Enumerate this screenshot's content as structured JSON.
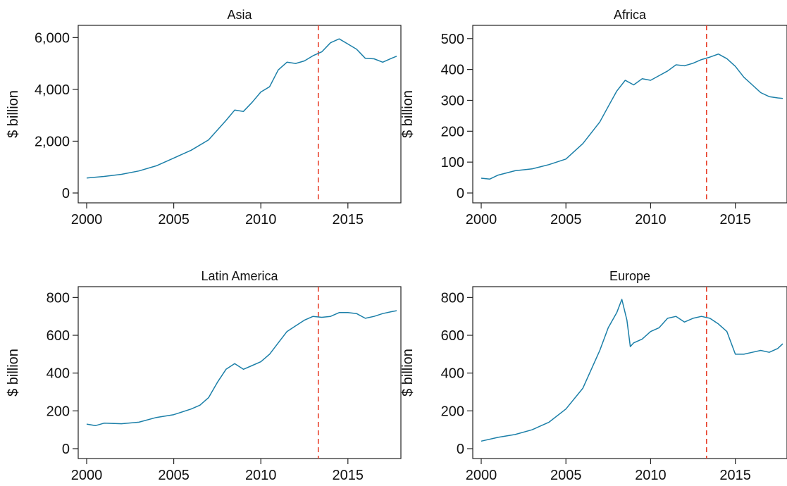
{
  "chart_data": [
    {
      "type": "line",
      "title": "Asia",
      "ylabel": "$ billion",
      "xlim": [
        2000,
        2017.8
      ],
      "ylim": [
        0,
        6200
      ],
      "xticks": [
        2000,
        2005,
        2010,
        2015
      ],
      "xtick_labels": [
        "2000",
        "2005",
        "2010",
        "2015"
      ],
      "yticks": [
        0,
        2000,
        4000,
        6000
      ],
      "ytick_labels": [
        "0",
        "2,000",
        "4,000",
        "6,000"
      ],
      "reference_line_x": 2013.3,
      "x": [
        2000,
        2001,
        2002,
        2003,
        2004,
        2005,
        2006,
        2007,
        2008,
        2008.5,
        2009,
        2009.5,
        2010,
        2010.5,
        2011,
        2011.5,
        2012,
        2012.5,
        2013,
        2013.5,
        2014,
        2014.5,
        2015,
        2015.5,
        2016,
        2016.5,
        2017,
        2017.5,
        2017.8
      ],
      "series": [
        {
          "values": [
            580,
            640,
            720,
            850,
            1050,
            1350,
            1650,
            2050,
            2800,
            3200,
            3150,
            3500,
            3900,
            4100,
            4750,
            5050,
            5000,
            5100,
            5300,
            5450,
            5800,
            5950,
            5750,
            5550,
            5200,
            5180,
            5050,
            5200,
            5280
          ]
        }
      ]
    },
    {
      "type": "line",
      "title": "Africa",
      "ylabel": "$ billion",
      "xlim": [
        2000,
        2017.8
      ],
      "ylim": [
        0,
        520
      ],
      "xticks": [
        2000,
        2005,
        2010,
        2015
      ],
      "xtick_labels": [
        "2000",
        "2005",
        "2010",
        "2015"
      ],
      "yticks": [
        0,
        100,
        200,
        300,
        400,
        500
      ],
      "ytick_labels": [
        "0",
        "100",
        "200",
        "300",
        "400",
        "500"
      ],
      "reference_line_x": 2013.3,
      "x": [
        2000,
        2000.5,
        2001,
        2002,
        2003,
        2004,
        2005,
        2006,
        2007,
        2007.5,
        2008,
        2008.5,
        2009,
        2009.5,
        2010,
        2010.5,
        2011,
        2011.5,
        2012,
        2012.5,
        2013,
        2013.5,
        2014,
        2014.5,
        2015,
        2015.5,
        2016,
        2016.5,
        2017,
        2017.5,
        2017.8
      ],
      "series": [
        {
          "values": [
            48,
            45,
            58,
            72,
            78,
            92,
            110,
            160,
            230,
            280,
            330,
            365,
            350,
            370,
            365,
            380,
            395,
            415,
            412,
            420,
            432,
            440,
            450,
            435,
            410,
            375,
            350,
            325,
            312,
            308,
            306
          ]
        }
      ]
    },
    {
      "type": "line",
      "title": "Latin America",
      "ylabel": "$ billion",
      "xlim": [
        2000,
        2017.8
      ],
      "ylim": [
        0,
        820
      ],
      "xticks": [
        2000,
        2005,
        2010,
        2015
      ],
      "xtick_labels": [
        "2000",
        "2005",
        "2010",
        "2015"
      ],
      "yticks": [
        0,
        200,
        400,
        600,
        800
      ],
      "ytick_labels": [
        "0",
        "200",
        "400",
        "600",
        "800"
      ],
      "reference_line_x": 2013.3,
      "x": [
        2000,
        2000.5,
        2001,
        2002,
        2003,
        2004,
        2005,
        2006,
        2006.5,
        2007,
        2007.5,
        2008,
        2008.5,
        2009,
        2009.5,
        2010,
        2010.5,
        2011,
        2011.5,
        2012,
        2012.5,
        2013,
        2013.5,
        2014,
        2014.5,
        2015,
        2015.5,
        2016,
        2016.5,
        2017,
        2017.5,
        2017.8
      ],
      "series": [
        {
          "values": [
            130,
            122,
            135,
            132,
            140,
            165,
            180,
            210,
            230,
            270,
            350,
            420,
            450,
            420,
            440,
            460,
            500,
            560,
            620,
            650,
            680,
            700,
            695,
            700,
            720,
            720,
            715,
            690,
            700,
            715,
            725,
            730
          ]
        }
      ]
    },
    {
      "type": "line",
      "title": "Europe",
      "ylabel": "$ billion",
      "xlim": [
        2000,
        2017.8
      ],
      "ylim": [
        0,
        820
      ],
      "xticks": [
        2000,
        2005,
        2010,
        2015
      ],
      "xtick_labels": [
        "2000",
        "2005",
        "2010",
        "2015"
      ],
      "yticks": [
        0,
        200,
        400,
        600,
        800
      ],
      "ytick_labels": [
        "0",
        "200",
        "400",
        "600",
        "800"
      ],
      "reference_line_x": 2013.3,
      "x": [
        2000,
        2001,
        2002,
        2003,
        2004,
        2005,
        2006,
        2007,
        2007.5,
        2008,
        2008.3,
        2008.6,
        2008.8,
        2009,
        2009.5,
        2010,
        2010.5,
        2011,
        2011.5,
        2012,
        2012.5,
        2013,
        2013.5,
        2014,
        2014.5,
        2015,
        2015.5,
        2016,
        2016.5,
        2017,
        2017.5,
        2017.8
      ],
      "series": [
        {
          "values": [
            40,
            60,
            75,
            100,
            140,
            210,
            320,
            520,
            640,
            720,
            790,
            680,
            540,
            560,
            580,
            620,
            640,
            690,
            700,
            670,
            690,
            700,
            690,
            660,
            620,
            500,
            500,
            510,
            520,
            510,
            530,
            555
          ]
        }
      ]
    }
  ]
}
